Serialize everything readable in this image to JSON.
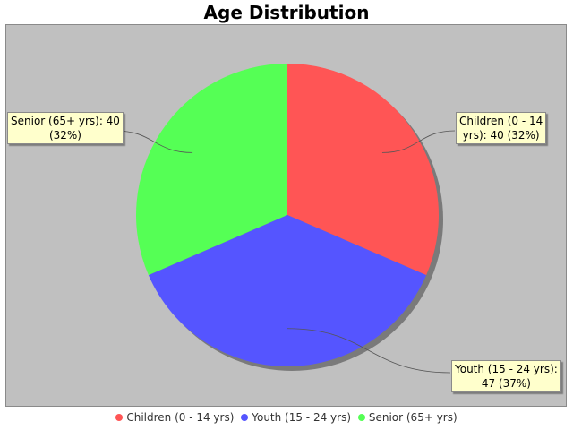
{
  "chart_data": {
    "type": "pie",
    "title": "Age Distribution",
    "categories": [
      "Children (0 - 14 yrs)",
      "Youth (15 - 24 yrs)",
      "Senior (65+ yrs)"
    ],
    "values": [
      40,
      47,
      40
    ],
    "percentages": [
      "32%",
      "37%",
      "32%"
    ],
    "colors": [
      "#ff5555",
      "#5555ff",
      "#55ff55"
    ],
    "slice_labels": [
      [
        "Children (0 - 14",
        "yrs): 40 (32%)"
      ],
      [
        "Youth (15 - 24 yrs):",
        "47 (37%)"
      ],
      [
        "Senior (65+ yrs): 40",
        "(32%)"
      ]
    ],
    "legend": [
      "Children (0 - 14 yrs)",
      "Youth (15 - 24 yrs)",
      "Senior (65+ yrs)"
    ],
    "legend_position": "bottom",
    "background": "#c0c0c0"
  }
}
